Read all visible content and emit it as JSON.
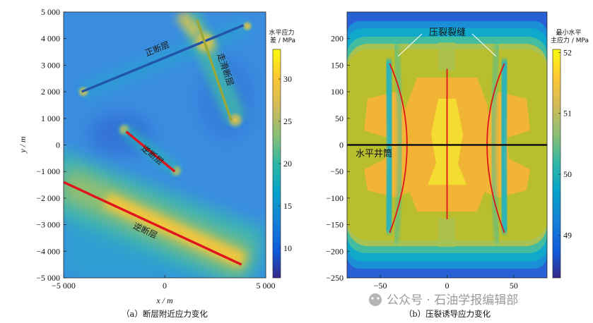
{
  "chart_data": [
    {
      "type": "heatmap",
      "caption": "（a）断层附近应力变化",
      "xlabel": "x / m",
      "ylabel": "y / m",
      "xlim": [
        -5000,
        5000
      ],
      "ylim": [
        -5000,
        5000
      ],
      "xticks": [
        -5000,
        0,
        5000
      ],
      "xtick_labels": [
        "−5 000",
        "0",
        "5 000"
      ],
      "yticks": [
        5000,
        4000,
        3000,
        2000,
        1000,
        0,
        -1000,
        -2000,
        -3000,
        -4000,
        -5000
      ],
      "ytick_labels": [
        "5 000",
        "4 000",
        "3 000",
        "2 000",
        "1 000",
        "0",
        "−1 000",
        "−2 000",
        "−3 000",
        "−4 000",
        "−5 000"
      ],
      "colorbar": {
        "title_lines": [
          "水平应力",
          "差 / MPa"
        ],
        "range": [
          6.5,
          33.5
        ],
        "ticks": [
          10,
          15,
          20,
          25,
          30
        ],
        "tick_labels": [
          "10",
          "15",
          "20",
          "25",
          "30"
        ],
        "colormap": "parula"
      },
      "faults": [
        {
          "label": "正断层",
          "color": "#2255aa",
          "x": [
            -4100,
            3900
          ],
          "y": [
            2000,
            4500
          ]
        },
        {
          "label": "走滑断层",
          "color": "#9aa83a",
          "x": [
            1600,
            3300
          ],
          "y": [
            4700,
            900
          ]
        },
        {
          "label": "逆断层",
          "color": "#e0141e",
          "x": [
            -1900,
            500
          ],
          "y": [
            500,
            -1000
          ]
        },
        {
          "label": "逆断层",
          "color": "#e0141e",
          "x": [
            -5000,
            3800
          ],
          "y": [
            -1400,
            -4500
          ]
        }
      ]
    },
    {
      "type": "heatmap",
      "caption": "（b）压裂诱导应力变化",
      "xlim": [
        -75,
        75
      ],
      "ylim": [
        -250,
        250
      ],
      "xticks": [
        -50,
        0,
        50
      ],
      "xtick_labels": [
        "−50",
        "0",
        "50"
      ],
      "yticks": [
        200,
        150,
        100,
        50,
        0,
        -50,
        -100,
        -150,
        -200,
        -250
      ],
      "ytick_labels": [
        "200",
        "150",
        "100",
        "50",
        "0",
        "−50",
        "−100",
        "−150",
        "−200",
        "−250"
      ],
      "colorbar": {
        "title_lines": [
          "最小水平",
          "主应力 / MPa"
        ],
        "range": [
          48.3,
          52.05
        ],
        "ticks": [
          49,
          50,
          51,
          52
        ],
        "tick_labels": [
          "49",
          "50",
          "51",
          "52"
        ],
        "colormap": "parula"
      },
      "annotations": [
        "压裂裂缝",
        "水平井筒"
      ],
      "wellbore": {
        "y": 0,
        "color": "#111111"
      },
      "fractures": [
        {
          "x": [
            -43,
            -30,
            -43
          ],
          "y": [
            153,
            0,
            -165
          ],
          "color": "#e0141e"
        },
        {
          "x": [
            0,
            0
          ],
          "y": [
            143,
            -140
          ],
          "color": "#e0141e"
        },
        {
          "x": [
            43,
            30,
            43
          ],
          "y": [
            153,
            0,
            -165
          ],
          "color": "#e0141e"
        }
      ]
    }
  ],
  "watermark": "公众号 · 石油学报编辑部"
}
